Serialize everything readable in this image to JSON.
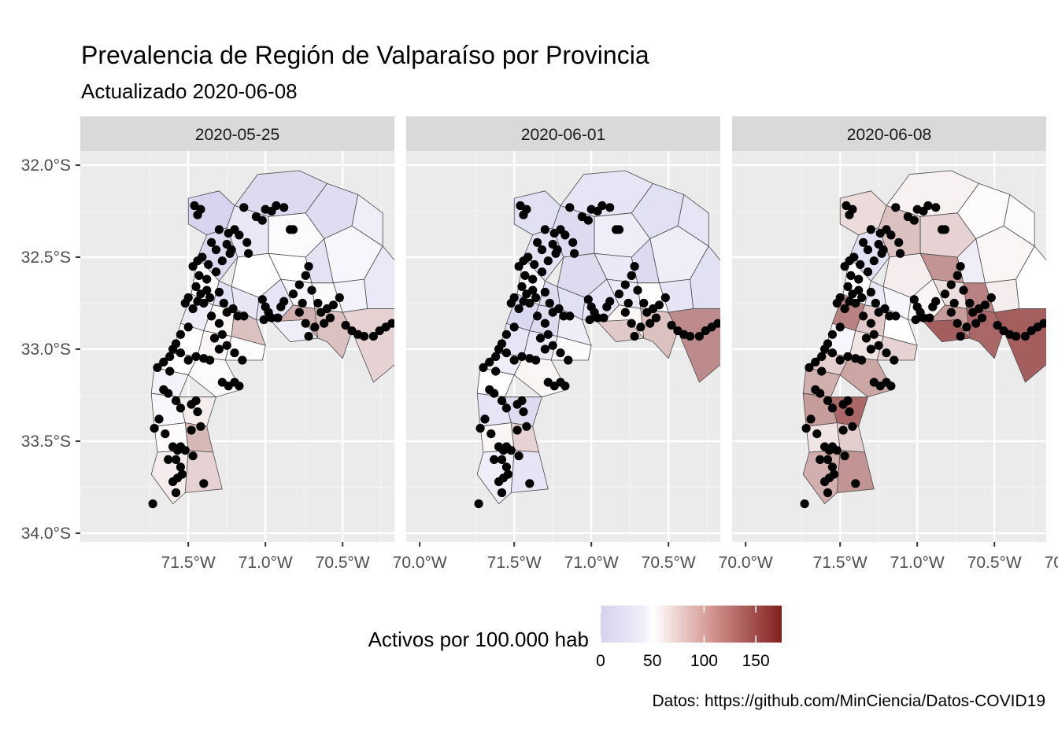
{
  "title": "Prevalencia de Región de Valparaíso por Provincia",
  "subtitle": "Actualizado 2020-06-08",
  "caption": "Datos: https://github.com/MinCiencia/Datos-COVID19",
  "legend": {
    "title": "Activos por 100.000 hab",
    "ticks": [
      0,
      50,
      100,
      150
    ],
    "tick_labels": [
      "0",
      "50",
      "100",
      "150"
    ],
    "range": [
      0,
      175
    ],
    "colors": {
      "low": "#d6d2ee",
      "mid": "#ffffff",
      "high": "#80201f"
    }
  },
  "axes": {
    "x_ticks": [
      -71.5,
      -71.0,
      -70.5,
      -70.0
    ],
    "x_tick_labels": [
      "71.5°W",
      "71.0°W",
      "70.5°W",
      "70.0°W"
    ],
    "y_ticks": [
      -32.0,
      -32.5,
      -33.0,
      -33.5,
      -34.0
    ],
    "y_tick_labels": [
      "32.0°S",
      "32.5°S",
      "33.0°S",
      "33.5°S",
      "34.0°S"
    ],
    "xlim": [
      -71.93,
      -69.9
    ],
    "ylim": [
      -34.05,
      -31.95
    ],
    "grid": true
  },
  "chart_data": {
    "type": "choropleth",
    "fill_variable": "Activos por 100.000 hab",
    "facets": [
      {
        "label": "2020-05-25",
        "values": [
          2,
          10,
          12,
          8,
          24,
          45,
          40,
          30,
          50,
          50,
          18,
          26,
          35,
          48,
          15,
          22,
          20,
          40,
          45,
          95,
          85,
          75,
          30,
          28,
          55,
          85,
          50,
          55,
          52,
          48,
          45,
          35,
          42,
          60,
          52,
          90,
          60,
          75
        ]
      },
      {
        "label": "2020-06-01",
        "values": [
          15,
          20,
          15,
          18,
          10,
          30,
          30,
          20,
          10,
          25,
          10,
          15,
          20,
          40,
          10,
          15,
          20,
          25,
          50,
          55,
          85,
          115,
          80,
          5,
          10,
          30,
          20,
          25,
          45,
          30,
          55,
          50,
          20,
          10,
          55,
          75,
          30,
          20
        ]
      },
      {
        "label": "2020-06-08",
        "values": [
          70,
          58,
          52,
          15,
          85,
          75,
          55,
          45,
          60,
          110,
          30,
          50,
          60,
          50,
          25,
          40,
          55,
          68,
          120,
          105,
          135,
          140,
          140,
          120,
          80,
          50,
          40,
          65,
          75,
          78,
          100,
          95,
          105,
          135,
          65,
          78,
          95,
          110
        ]
      }
    ],
    "points": [
      [
        -71.46,
        -32.22
      ],
      [
        -71.42,
        -32.24
      ],
      [
        -71.44,
        -32.27
      ],
      [
        -71.14,
        -32.23
      ],
      [
        -70.93,
        -32.22
      ],
      [
        -70.96,
        -32.25
      ],
      [
        -71.0,
        -32.24
      ],
      [
        -70.88,
        -32.23
      ],
      [
        -71.24,
        -32.37
      ],
      [
        -71.2,
        -32.35
      ],
      [
        -71.17,
        -32.38
      ],
      [
        -71.3,
        -32.35
      ],
      [
        -71.06,
        -32.28
      ],
      [
        -71.02,
        -32.3
      ],
      [
        -70.84,
        -32.35
      ],
      [
        -70.82,
        -32.35
      ],
      [
        -71.35,
        -32.42
      ],
      [
        -71.32,
        -32.46
      ],
      [
        -71.25,
        -32.43
      ],
      [
        -71.22,
        -32.46
      ],
      [
        -71.12,
        -32.42
      ],
      [
        -71.11,
        -32.48
      ],
      [
        -71.44,
        -32.52
      ],
      [
        -71.41,
        -32.5
      ],
      [
        -71.37,
        -32.54
      ],
      [
        -71.28,
        -32.52
      ],
      [
        -71.23,
        -32.48
      ],
      [
        -71.47,
        -32.55
      ],
      [
        -71.43,
        -32.6
      ],
      [
        -71.38,
        -32.62
      ],
      [
        -71.32,
        -32.58
      ],
      [
        -71.45,
        -32.66
      ],
      [
        -71.42,
        -32.7
      ],
      [
        -71.38,
        -32.68
      ],
      [
        -71.36,
        -32.72
      ],
      [
        -71.3,
        -32.69
      ],
      [
        -71.27,
        -32.75
      ],
      [
        -71.25,
        -32.8
      ],
      [
        -71.21,
        -32.78
      ],
      [
        -71.18,
        -32.82
      ],
      [
        -71.14,
        -32.82
      ],
      [
        -71.02,
        -32.73
      ],
      [
        -71.0,
        -32.77
      ],
      [
        -70.98,
        -32.8
      ],
      [
        -70.96,
        -32.83
      ],
      [
        -71.01,
        -32.84
      ],
      [
        -70.92,
        -32.83
      ],
      [
        -70.9,
        -32.77
      ],
      [
        -70.88,
        -32.74
      ],
      [
        -70.82,
        -32.7
      ],
      [
        -70.78,
        -32.65
      ],
      [
        -70.74,
        -32.6
      ],
      [
        -70.72,
        -32.55
      ],
      [
        -70.7,
        -32.68
      ],
      [
        -70.66,
        -32.75
      ],
      [
        -70.64,
        -32.8
      ],
      [
        -70.6,
        -32.78
      ],
      [
        -70.58,
        -32.83
      ],
      [
        -70.62,
        -32.86
      ],
      [
        -70.68,
        -32.88
      ],
      [
        -70.72,
        -32.93
      ],
      [
        -70.74,
        -32.86
      ],
      [
        -70.78,
        -32.8
      ],
      [
        -70.76,
        -32.75
      ],
      [
        -70.56,
        -32.76
      ],
      [
        -70.52,
        -32.72
      ],
      [
        -70.48,
        -32.87
      ],
      [
        -70.44,
        -32.9
      ],
      [
        -70.4,
        -32.92
      ],
      [
        -70.36,
        -32.93
      ],
      [
        -70.3,
        -32.93
      ],
      [
        -70.26,
        -32.9
      ],
      [
        -70.22,
        -32.88
      ],
      [
        -70.18,
        -32.86
      ],
      [
        -70.14,
        -32.85
      ],
      [
        -70.1,
        -32.82
      ],
      [
        -70.1,
        -32.92
      ],
      [
        -71.52,
        -32.75
      ],
      [
        -71.5,
        -32.72
      ],
      [
        -71.47,
        -32.78
      ],
      [
        -71.44,
        -32.74
      ],
      [
        -71.4,
        -32.75
      ],
      [
        -71.35,
        -32.82
      ],
      [
        -71.3,
        -32.86
      ],
      [
        -71.28,
        -32.92
      ],
      [
        -71.33,
        -32.94
      ],
      [
        -71.5,
        -32.88
      ],
      [
        -71.55,
        -32.92
      ],
      [
        -71.58,
        -32.97
      ],
      [
        -71.6,
        -33.0
      ],
      [
        -71.62,
        -33.04
      ],
      [
        -71.55,
        -33.02
      ],
      [
        -71.5,
        -33.06
      ],
      [
        -71.45,
        -33.04
      ],
      [
        -71.4,
        -33.05
      ],
      [
        -71.36,
        -33.06
      ],
      [
        -71.3,
        -33.0
      ],
      [
        -71.25,
        -32.98
      ],
      [
        -71.2,
        -33.02
      ],
      [
        -71.15,
        -33.06
      ],
      [
        -71.28,
        -33.18
      ],
      [
        -71.24,
        -33.2
      ],
      [
        -71.2,
        -33.18
      ],
      [
        -71.17,
        -33.2
      ],
      [
        -71.66,
        -33.07
      ],
      [
        -71.7,
        -33.1
      ],
      [
        -71.62,
        -33.12
      ],
      [
        -71.66,
        -33.22
      ],
      [
        -71.63,
        -33.24
      ],
      [
        -71.58,
        -33.28
      ],
      [
        -71.55,
        -33.32
      ],
      [
        -71.48,
        -33.3
      ],
      [
        -71.45,
        -33.28
      ],
      [
        -71.44,
        -33.34
      ],
      [
        -71.42,
        -33.42
      ],
      [
        -71.48,
        -33.44
      ],
      [
        -71.72,
        -33.43
      ],
      [
        -71.69,
        -33.38
      ],
      [
        -71.65,
        -33.46
      ],
      [
        -71.6,
        -33.53
      ],
      [
        -71.57,
        -33.55
      ],
      [
        -71.55,
        -33.53
      ],
      [
        -71.52,
        -33.55
      ],
      [
        -71.47,
        -33.58
      ],
      [
        -71.63,
        -33.6
      ],
      [
        -71.58,
        -33.6
      ],
      [
        -71.55,
        -33.64
      ],
      [
        -71.54,
        -33.68
      ],
      [
        -71.57,
        -33.7
      ],
      [
        -71.6,
        -33.72
      ],
      [
        -71.58,
        -33.78
      ],
      [
        -71.4,
        -33.73
      ],
      [
        -71.73,
        -33.84
      ]
    ],
    "point_color": "#000000"
  }
}
